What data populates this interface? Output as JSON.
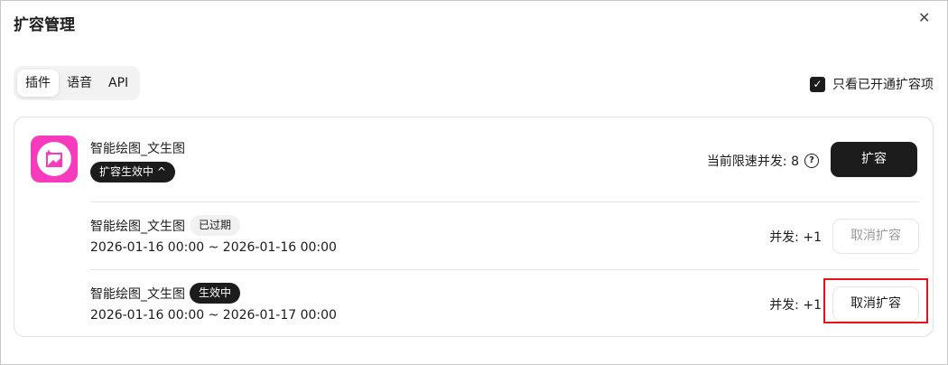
{
  "dialog": {
    "title": "扩容管理",
    "close_icon": "close-icon"
  },
  "tabs": [
    {
      "label": "插件",
      "active": true
    },
    {
      "label": "语音",
      "active": false
    },
    {
      "label": "API",
      "active": false
    }
  ],
  "filter": {
    "label": "只看已开通扩容项",
    "checked": true
  },
  "plugin": {
    "name": "智能绘图_文生图",
    "status": "扩容生效中",
    "status_chevron": "^",
    "limit_label": "当前限速并发: 8",
    "expand_label": "扩容",
    "icon_color": "#f83bbd",
    "rows": [
      {
        "name": "智能绘图_文生图",
        "badge": "已过期",
        "dates": "2026-01-16 00:00 ~ 2026-01-16 00:00",
        "concurrency": "并发: +1",
        "cancel_label": "取消扩容",
        "disabled": true
      },
      {
        "name": "智能绘图_文生图",
        "badge": "生效中",
        "dates": "2026-01-16 00:00 ~ 2026-01-17 00:00",
        "concurrency": "并发: +1",
        "cancel_label": "取消扩容",
        "disabled": false
      }
    ]
  }
}
